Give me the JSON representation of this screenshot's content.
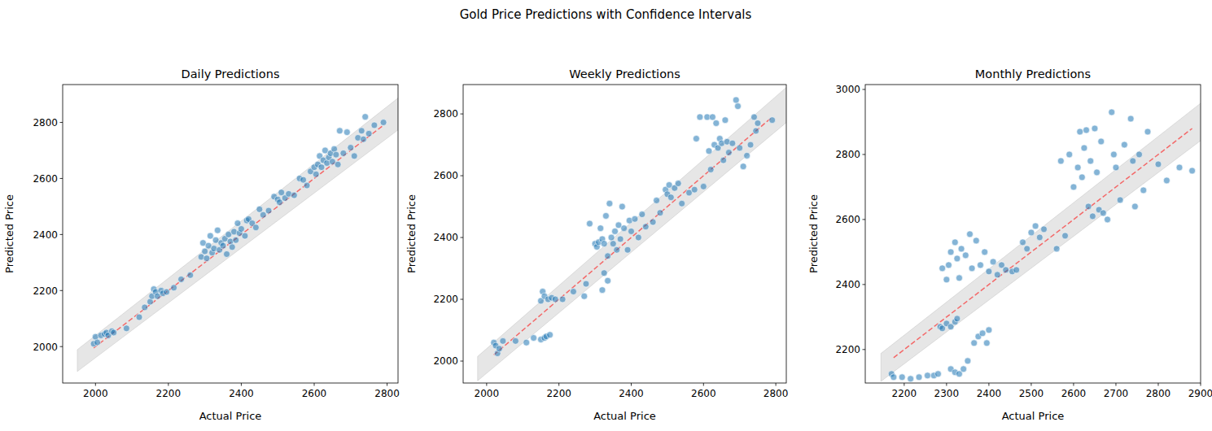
{
  "title": "Gold Price Predictions with Confidence Intervals",
  "chart_data": [
    {
      "type": "scatter",
      "title": "Daily Predictions",
      "x_label": "Actual Price",
      "y_label": "Predicted Price",
      "xlim": [
        1910,
        2830
      ],
      "ylim": [
        1870,
        2935
      ],
      "xticks": [
        2000,
        2200,
        2400,
        2600,
        2800
      ],
      "yticks": [
        2000,
        2200,
        2400,
        2600,
        2800
      ],
      "color": "#1f77b4",
      "marker": "circle",
      "x": [
        1995,
        2000,
        2005,
        2015,
        2025,
        2030,
        2035,
        2045,
        2050,
        2085,
        2120,
        2135,
        2150,
        2155,
        2160,
        2165,
        2170,
        2180,
        2185,
        2195,
        2215,
        2235,
        2260,
        2290,
        2295,
        2300,
        2305,
        2310,
        2315,
        2320,
        2325,
        2330,
        2335,
        2340,
        2345,
        2350,
        2355,
        2360,
        2365,
        2370,
        2375,
        2380,
        2385,
        2390,
        2395,
        2400,
        2410,
        2415,
        2420,
        2430,
        2440,
        2450,
        2460,
        2475,
        2490,
        2500,
        2505,
        2510,
        2520,
        2530,
        2545,
        2560,
        2570,
        2580,
        2590,
        2600,
        2605,
        2610,
        2615,
        2620,
        2625,
        2630,
        2635,
        2640,
        2645,
        2650,
        2655,
        2660,
        2665,
        2670,
        2680,
        2690,
        2700,
        2710,
        2720,
        2730,
        2735,
        2740,
        2750,
        2765,
        2790
      ],
      "values": [
        2010,
        2035,
        2015,
        2040,
        2045,
        2050,
        2040,
        2055,
        2050,
        2065,
        2105,
        2140,
        2160,
        2180,
        2205,
        2195,
        2180,
        2200,
        2190,
        2195,
        2210,
        2240,
        2255,
        2320,
        2370,
        2340,
        2315,
        2360,
        2395,
        2335,
        2350,
        2380,
        2415,
        2345,
        2370,
        2360,
        2385,
        2330,
        2400,
        2375,
        2355,
        2410,
        2380,
        2440,
        2405,
        2420,
        2395,
        2450,
        2455,
        2440,
        2425,
        2490,
        2470,
        2485,
        2535,
        2525,
        2515,
        2550,
        2530,
        2545,
        2540,
        2600,
        2595,
        2575,
        2625,
        2640,
        2615,
        2650,
        2680,
        2640,
        2665,
        2700,
        2655,
        2675,
        2690,
        2660,
        2705,
        2685,
        2650,
        2770,
        2690,
        2765,
        2710,
        2680,
        2745,
        2770,
        2740,
        2820,
        2760,
        2790,
        2800
      ],
      "reference_line": {
        "x": [
          1995,
          2790
        ],
        "values": [
          1995,
          2790
        ],
        "color": "red",
        "line_style": "dashed"
      },
      "confidence_interval": {
        "x": [
          1950,
          2830
        ],
        "lower": [
          1911,
          2773
        ],
        "upper": [
          1989,
          2887
        ],
        "color": "gray"
      }
    },
    {
      "type": "scatter",
      "title": "Weekly Predictions",
      "x_label": "Actual Price",
      "y_label": "Predicted Price",
      "xlim": [
        1935,
        2829
      ],
      "ylim": [
        1929,
        2895
      ],
      "xticks": [
        2000,
        2200,
        2400,
        2600,
        2800
      ],
      "yticks": [
        2000,
        2200,
        2400,
        2600,
        2800
      ],
      "color": "#1f77b4",
      "marker": "circle",
      "x": [
        2020,
        2025,
        2030,
        2035,
        2045,
        2080,
        2110,
        2130,
        2150,
        2160,
        2165,
        2175,
        2150,
        2155,
        2160,
        2170,
        2180,
        2190,
        2210,
        2240,
        2270,
        2275,
        2285,
        2300,
        2305,
        2310,
        2315,
        2320,
        2325,
        2330,
        2335,
        2340,
        2345,
        2350,
        2335,
        2325,
        2320,
        2355,
        2360,
        2365,
        2370,
        2375,
        2380,
        2390,
        2395,
        2400,
        2410,
        2420,
        2430,
        2440,
        2460,
        2470,
        2480,
        2495,
        2500,
        2505,
        2510,
        2520,
        2530,
        2540,
        2560,
        2575,
        2580,
        2590,
        2600,
        2610,
        2615,
        2620,
        2625,
        2630,
        2635,
        2640,
        2645,
        2650,
        2655,
        2660,
        2665,
        2670,
        2680,
        2690,
        2695,
        2700,
        2710,
        2720,
        2730,
        2740,
        2745,
        2750,
        2790
      ],
      "values": [
        2060,
        2050,
        2025,
        2040,
        2065,
        2065,
        2060,
        2075,
        2070,
        2075,
        2080,
        2085,
        2195,
        2225,
        2210,
        2200,
        2205,
        2200,
        2200,
        2225,
        2210,
        2250,
        2445,
        2380,
        2370,
        2385,
        2430,
        2395,
        2380,
        2470,
        2340,
        2510,
        2400,
        2380,
        2260,
        2285,
        2230,
        2420,
        2360,
        2440,
        2395,
        2500,
        2430,
        2360,
        2455,
        2420,
        2460,
        2400,
        2475,
        2435,
        2450,
        2520,
        2480,
        2555,
        2540,
        2570,
        2530,
        2560,
        2575,
        2510,
        2545,
        2555,
        2720,
        2790,
        2565,
        2790,
        2680,
        2620,
        2790,
        2700,
        2770,
        2690,
        2720,
        2705,
        2650,
        2780,
        2710,
        2675,
        2705,
        2845,
        2825,
        2690,
        2630,
        2665,
        2700,
        2790,
        2745,
        2770,
        2780
      ],
      "reference_line": {
        "x": [
          2020,
          2790
        ],
        "values": [
          2020,
          2790
        ],
        "color": "red",
        "line_style": "dashed"
      },
      "confidence_interval": {
        "x": [
          1975,
          2830
        ],
        "lower": [
          1936,
          2773
        ],
        "upper": [
          2015,
          2887
        ],
        "color": "gray"
      }
    },
    {
      "type": "scatter",
      "title": "Monthly Predictions",
      "x_label": "Actual Price",
      "y_label": "Predicted Price",
      "xlim": [
        2108,
        2900
      ],
      "ylim": [
        2097,
        3015
      ],
      "xticks": [
        2200,
        2300,
        2400,
        2500,
        2600,
        2700,
        2800,
        2900
      ],
      "yticks": [
        2200,
        2400,
        2600,
        2800,
        3000
      ],
      "color": "#1f77b4",
      "marker": "circle",
      "x": [
        2170,
        2175,
        2195,
        2215,
        2235,
        2255,
        2270,
        2280,
        2285,
        2290,
        2300,
        2310,
        2320,
        2325,
        2310,
        2320,
        2330,
        2340,
        2350,
        2365,
        2375,
        2385,
        2395,
        2400,
        2290,
        2300,
        2305,
        2310,
        2320,
        2325,
        2330,
        2335,
        2345,
        2355,
        2360,
        2370,
        2380,
        2390,
        2400,
        2410,
        2420,
        2430,
        2440,
        2455,
        2465,
        2480,
        2490,
        2500,
        2510,
        2520,
        2530,
        2560,
        2570,
        2580,
        2590,
        2600,
        2610,
        2615,
        2620,
        2625,
        2630,
        2635,
        2640,
        2645,
        2650,
        2655,
        2660,
        2665,
        2670,
        2680,
        2690,
        2695,
        2700,
        2710,
        2720,
        2735,
        2740,
        2745,
        2755,
        2765,
        2775,
        2800,
        2820,
        2850,
        2880
      ],
      "values": [
        2125,
        2115,
        2115,
        2110,
        2115,
        2120,
        2120,
        2125,
        2270,
        2265,
        2280,
        2270,
        2285,
        2295,
        2140,
        2130,
        2125,
        2140,
        2165,
        2220,
        2240,
        2250,
        2220,
        2260,
        2450,
        2415,
        2460,
        2500,
        2530,
        2480,
        2420,
        2510,
        2490,
        2555,
        2450,
        2535,
        2460,
        2500,
        2440,
        2470,
        2430,
        2460,
        2445,
        2440,
        2445,
        2530,
        2510,
        2560,
        2580,
        2545,
        2570,
        2510,
        2780,
        2550,
        2800,
        2700,
        2760,
        2870,
        2730,
        2820,
        2875,
        2640,
        2780,
        2610,
        2880,
        2745,
        2630,
        2840,
        2620,
        2600,
        2930,
        2800,
        2760,
        2660,
        2830,
        2910,
        2780,
        2640,
        2800,
        2690,
        2870,
        2770,
        2720,
        2760,
        2750
      ],
      "reference_line": {
        "x": [
          2175,
          2880
        ],
        "values": [
          2175,
          2880
        ],
        "color": "red",
        "line_style": "dashed"
      },
      "confidence_interval": {
        "x": [
          2145,
          2920
        ],
        "lower": [
          2102,
          2862
        ],
        "upper": [
          2188,
          2978
        ],
        "color": "gray"
      }
    }
  ]
}
